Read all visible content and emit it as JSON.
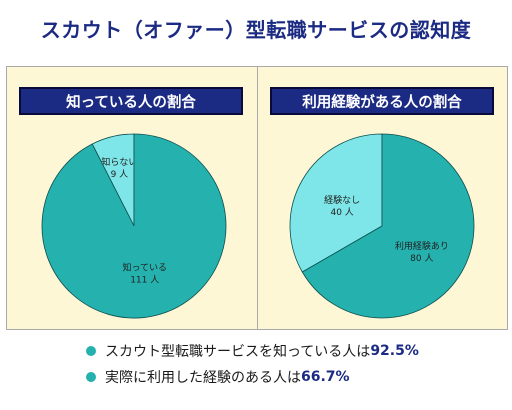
{
  "title": "スカウト（オファー）型転職サービスの認知度",
  "colors": {
    "teal": "#25b1ae",
    "light": "#7ee6e8",
    "navy": "#1b2a82"
  },
  "chart_data": [
    {
      "type": "pie",
      "title": "知っている人の割合",
      "slices": [
        {
          "label": "知っている",
          "value": 111,
          "value_label": "111 人",
          "color": "#25b1ae"
        },
        {
          "label": "知らない",
          "value": 9,
          "value_label": "9 人",
          "color": "#7ee6e8"
        }
      ]
    },
    {
      "type": "pie",
      "title": "利用経験がある人の割合",
      "slices": [
        {
          "label": "利用経験あり",
          "value": 80,
          "value_label": "80 人",
          "color": "#25b1ae"
        },
        {
          "label": "経験なし",
          "value": 40,
          "value_label": "40 人",
          "color": "#7ee6e8"
        }
      ]
    }
  ],
  "notes": [
    {
      "text": "スカウト型転職サービスを知っている人は",
      "value": "92.5%"
    },
    {
      "text": "実際に利用した経験のある人は",
      "value": "66.7%"
    }
  ]
}
